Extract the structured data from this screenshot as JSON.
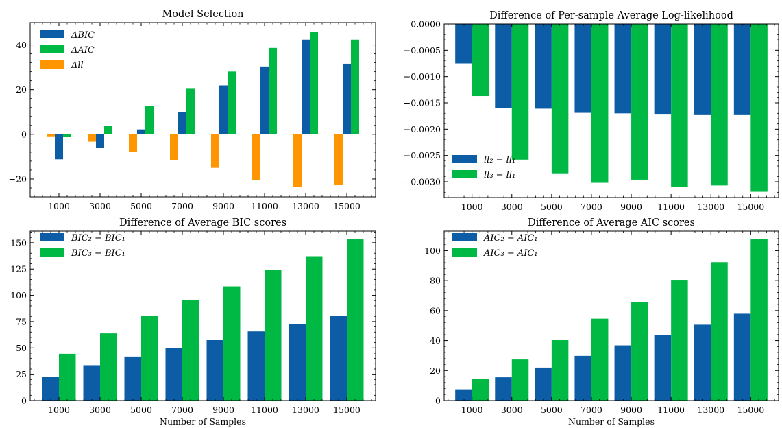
{
  "figure": {
    "colors": {
      "blue": "#0C5DA5",
      "green": "#00B945",
      "orange": "#FF9500"
    }
  },
  "chart_data": [
    {
      "type": "bar",
      "title": "Model Selection",
      "xlabel": "",
      "ylabel": "",
      "categories": [
        "1000",
        "3000",
        "5000",
        "7000",
        "9000",
        "11000",
        "13000",
        "15000"
      ],
      "ylim": [
        -28,
        50
      ],
      "yticks": [
        -20,
        0,
        20,
        40
      ],
      "ytick_labels": [
        "−20",
        "0",
        "20",
        "40"
      ],
      "legend_position": "top-left",
      "series": [
        {
          "name": "Δll",
          "color": "#FF9500",
          "values": [
            -1.2,
            -3.3,
            -7.8,
            -11.5,
            -15.0,
            -20.5,
            -23.4,
            -22.8
          ]
        },
        {
          "name": "ΔBIC",
          "color": "#0C5DA5",
          "values": [
            -11.2,
            -6.2,
            2.2,
            9.8,
            21.9,
            30.4,
            42.4,
            31.6
          ]
        },
        {
          "name": "ΔAIC",
          "color": "#00B945",
          "values": [
            -1.3,
            3.7,
            12.8,
            20.4,
            28.1,
            38.7,
            45.9,
            42.4
          ]
        }
      ],
      "legend_order": [
        1,
        2,
        0
      ]
    },
    {
      "type": "bar",
      "title": "Difference of Per-sample Average Log-likelihood",
      "xlabel": "",
      "ylabel": "",
      "categories": [
        "1000",
        "3000",
        "5000",
        "7000",
        "9000",
        "11000",
        "13000",
        "15000"
      ],
      "ylim": [
        -0.0033,
        0
      ],
      "yticks": [
        0,
        -0.0005,
        -0.001,
        -0.0015,
        -0.002,
        -0.0025,
        -0.003
      ],
      "ytick_labels": [
        "0.0000",
        "−0.0005",
        "−0.0010",
        "−0.0015",
        "−0.0020",
        "−0.0025",
        "−0.0030"
      ],
      "legend_position": "bottom-left",
      "series": [
        {
          "name": "ll₂ − ll₁",
          "color": "#0C5DA5",
          "values": [
            -0.00075,
            -0.0016,
            -0.00161,
            -0.00169,
            -0.0017,
            -0.00171,
            -0.00172,
            -0.00172
          ]
        },
        {
          "name": "ll₃ − ll₁",
          "color": "#00B945",
          "values": [
            -0.00137,
            -0.00258,
            -0.00284,
            -0.00302,
            -0.00296,
            -0.0031,
            -0.00307,
            -0.00319
          ]
        }
      ],
      "legend_order": [
        0,
        1
      ]
    },
    {
      "type": "bar",
      "title": "Difference of Average BIC scores",
      "xlabel": "Number of Samples",
      "ylabel": "",
      "categories": [
        "1000",
        "3000",
        "5000",
        "7000",
        "9000",
        "11000",
        "13000",
        "15000"
      ],
      "ylim": [
        0,
        161
      ],
      "yticks": [
        0,
        25,
        50,
        75,
        100,
        125,
        150
      ],
      "ytick_labels": [
        "0",
        "25",
        "50",
        "75",
        "100",
        "125",
        "150"
      ],
      "legend_position": "top-left",
      "series": [
        {
          "name": "BIC₂ − BIC₁",
          "color": "#0C5DA5",
          "values": [
            22.5,
            33.6,
            41.8,
            49.9,
            58.0,
            65.7,
            72.8,
            80.6
          ]
        },
        {
          "name": "BIC₃ − BIC₁",
          "color": "#00B945",
          "values": [
            44.4,
            63.8,
            80.2,
            95.5,
            108.5,
            124.2,
            137.2,
            153.6
          ]
        }
      ],
      "legend_order": [
        0,
        1
      ]
    },
    {
      "type": "bar",
      "title": "Difference of Average AIC scores",
      "xlabel": "Number of Samples",
      "ylabel": "",
      "categories": [
        "1000",
        "3000",
        "5000",
        "7000",
        "9000",
        "11000",
        "13000",
        "15000"
      ],
      "ylim": [
        0,
        113
      ],
      "yticks": [
        0,
        20,
        40,
        60,
        80,
        100
      ],
      "ytick_labels": [
        "0",
        "20",
        "40",
        "60",
        "80",
        "100"
      ],
      "legend_position": "top-left",
      "series": [
        {
          "name": "AIC₂ − AIC₁",
          "color": "#0C5DA5",
          "values": [
            7.5,
            15.5,
            22.0,
            29.8,
            36.8,
            43.6,
            50.6,
            57.9
          ]
        },
        {
          "name": "AIC₃ − AIC₁",
          "color": "#00B945",
          "values": [
            14.6,
            27.4,
            40.5,
            54.6,
            65.5,
            80.5,
            92.3,
            107.9
          ]
        }
      ],
      "legend_order": [
        0,
        1
      ]
    }
  ]
}
